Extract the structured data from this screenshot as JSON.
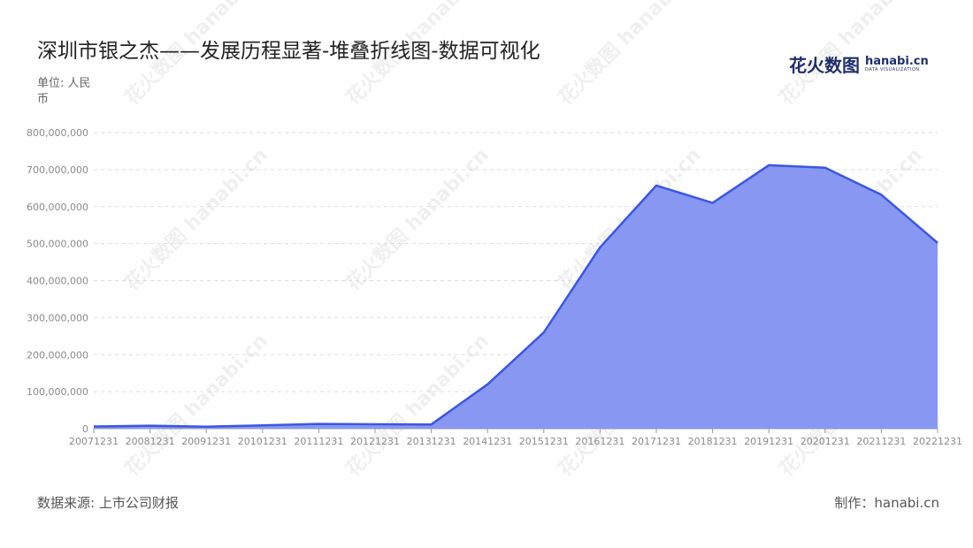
{
  "header": {
    "title": "深圳市银之杰——发展历程显著-堆叠折线图-数据可视化",
    "unit_label": "单位: 人民币"
  },
  "brand": {
    "name_cn": "花火数图",
    "name_en": "hanabi.cn",
    "tagline": "DATA VISUALIZATION"
  },
  "footer": {
    "source": "数据来源: 上市公司财报",
    "credit": "制作：hanabi.cn"
  },
  "colors": {
    "line": "#3b57e0",
    "area": "#8797f2",
    "grid": "#dddddd"
  },
  "chart_data": {
    "type": "area",
    "stacked": true,
    "title": "深圳市银之杰——发展历程显著-堆叠折线图-数据可视化",
    "ylabel": "单位: 人民币",
    "xlabel": "",
    "categories": [
      "20071231",
      "20081231",
      "20091231",
      "20101231",
      "20111231",
      "20121231",
      "20131231",
      "20141231",
      "20151231",
      "20161231",
      "20171231",
      "20181231",
      "20191231",
      "20201231",
      "20211231",
      "20221231"
    ],
    "series": [
      {
        "values": [
          6000000,
          8000000,
          5500000,
          9000000,
          13000000,
          12000000,
          11500000,
          120000000,
          260000000,
          490000000,
          657000000,
          610000000,
          712000000,
          705000000,
          632000000,
          502000000
        ]
      }
    ],
    "yticks": [
      "0",
      "100,000,000",
      "200,000,000",
      "300,000,000",
      "400,000,000",
      "500,000,000",
      "600,000,000",
      "700,000,000",
      "800,000,000"
    ],
    "ylim": [
      0,
      800000000
    ],
    "grid": true,
    "legend": "none"
  }
}
